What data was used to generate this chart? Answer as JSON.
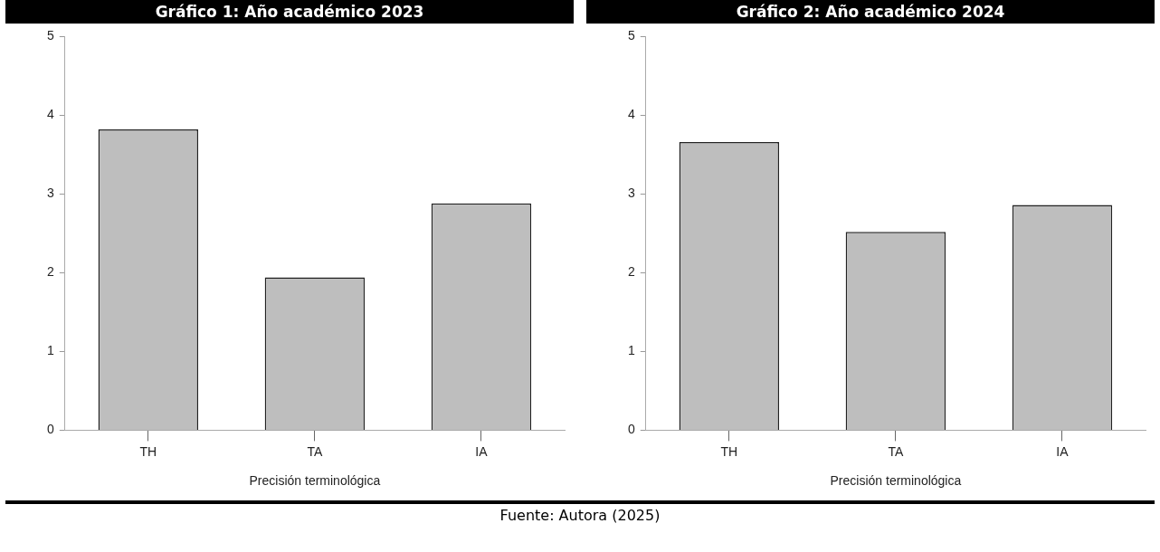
{
  "chart_data": [
    {
      "type": "bar",
      "title": "Gráfico 1: Año académico 2023",
      "xlabel": "Precisión terminológica",
      "categories": [
        "TH",
        "TA",
        "IA"
      ],
      "values": [
        3.82,
        1.94,
        2.88
      ],
      "color": "#bebebe",
      "ylim": [
        0,
        5
      ],
      "yticks": [
        0,
        1,
        2,
        3,
        4,
        5
      ],
      "grid": false,
      "legend": false
    },
    {
      "type": "bar",
      "title": "Gráfico 2: Año académico 2024",
      "xlabel": "Precisión terminológica",
      "categories": [
        "TH",
        "TA",
        "IA"
      ],
      "values": [
        3.66,
        2.52,
        2.86
      ],
      "color": "#bebebe",
      "ylim": [
        0,
        5
      ],
      "yticks": [
        0,
        1,
        2,
        3,
        4,
        5
      ],
      "grid": false,
      "legend": false,
      "annotations": [
        "Fuente: Autora (2025)"
      ]
    }
  ]
}
